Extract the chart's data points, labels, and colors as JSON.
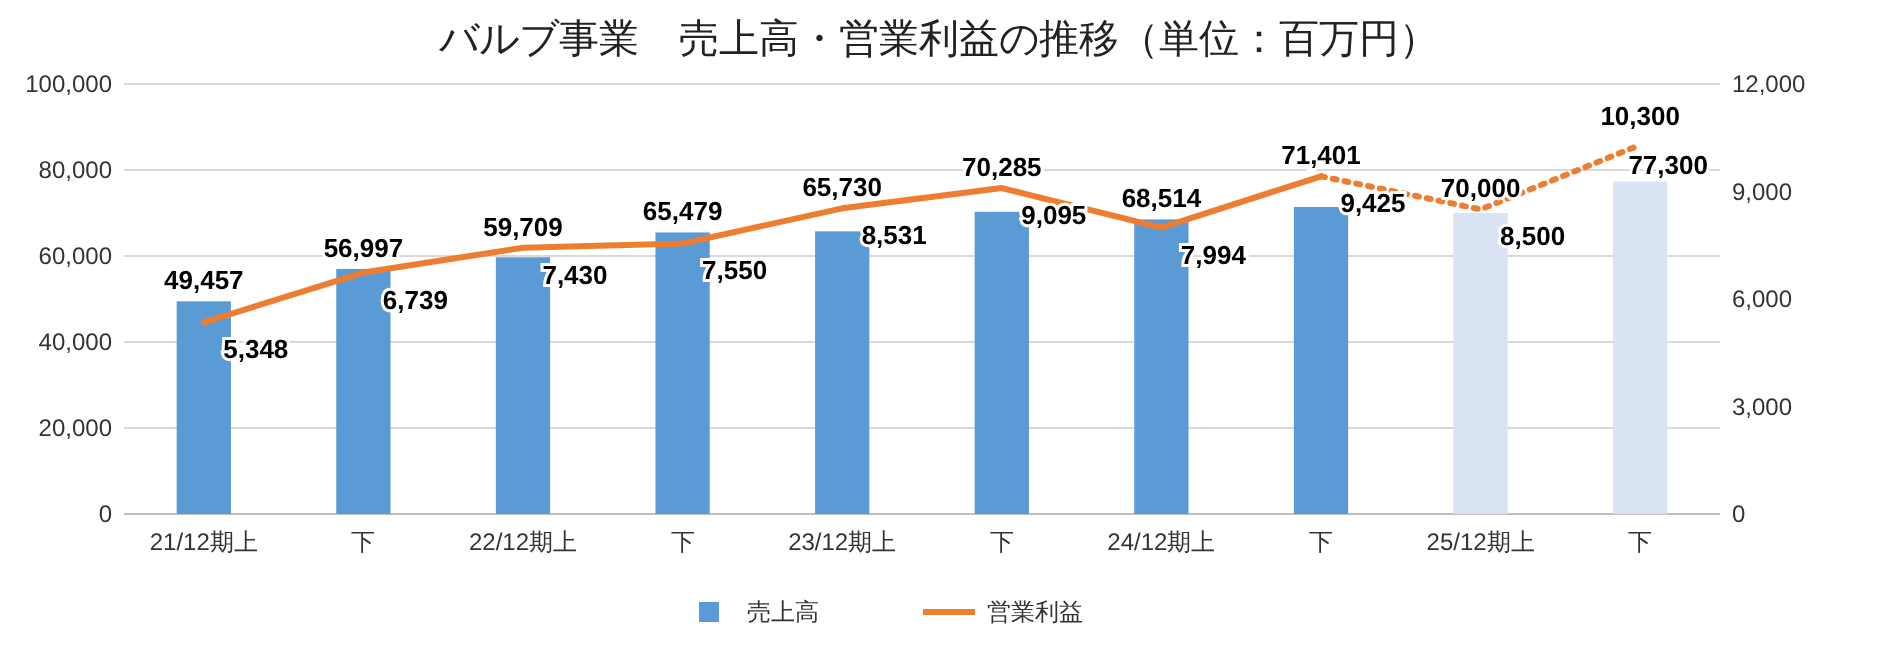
{
  "chart_data": {
    "type": "bar",
    "title": "バルブ事業　売上高・営業利益の推移（単位：百万円）",
    "categories": [
      "21/12期上",
      "下",
      "22/12期上",
      "下",
      "23/12期上",
      "下",
      "24/12期上",
      "下",
      "25/12期上",
      "下"
    ],
    "series": [
      {
        "name": "売上高",
        "color": "#5b9bd5",
        "colors": [
          "#5b9bd5",
          "#5b9bd5",
          "#5b9bd5",
          "#5b9bd5",
          "#5b9bd5",
          "#5b9bd5",
          "#5b9bd5",
          "#5b9bd5",
          "#dae3f3",
          "#dae3f3"
        ],
        "values": [
          49457,
          56997,
          59709,
          65479,
          65730,
          70285,
          68514,
          71401,
          70000,
          77300
        ],
        "value_labels": [
          "49,457",
          "56,997",
          "59,709",
          "65,479",
          "65,730",
          "70,285",
          "68,514",
          "71,401",
          "70,000",
          "77,300"
        ]
      },
      {
        "name": "営業利益",
        "type": "line",
        "axis": "y2",
        "color": "#ed7d31",
        "line_style": "solid",
        "values": [
          5348,
          6739,
          7430,
          7550,
          8531,
          9095,
          7994,
          9425,
          null,
          null
        ],
        "value_labels": [
          "5,348",
          "6,739",
          "7,430",
          "7,550",
          "8,531",
          "9,095",
          "7,994",
          "9,425",
          null,
          null
        ]
      },
      {
        "type": "line",
        "axis": "y2",
        "color": "#ed7d31",
        "line_style": "dotted",
        "values": [
          null,
          null,
          null,
          null,
          null,
          null,
          null,
          9425,
          8500,
          10300
        ],
        "value_labels": [
          null,
          null,
          null,
          null,
          null,
          null,
          null,
          null,
          "8,500",
          "10,300"
        ]
      }
    ],
    "ylim": [
      0,
      100000
    ],
    "yticks": [
      0,
      {
        "value": 20000,
        "label": "20,000"
      },
      {
        "value": 40000,
        "label": "40,000"
      },
      {
        "value": 60000,
        "label": "60,000"
      },
      {
        "value": 80000,
        "label": "80,000"
      },
      {
        "value": 100000,
        "label": "100,000"
      }
    ],
    "y2lim": [
      0,
      12000
    ],
    "y2ticks": [
      0,
      {
        "value": 3000,
        "label": "3,000"
      },
      {
        "value": 6000,
        "label": "6,000"
      },
      {
        "value": 9000,
        "label": "9,000"
      },
      {
        "value": 12000,
        "label": "12,000"
      }
    ],
    "grid": "y",
    "legend": "bottom"
  }
}
